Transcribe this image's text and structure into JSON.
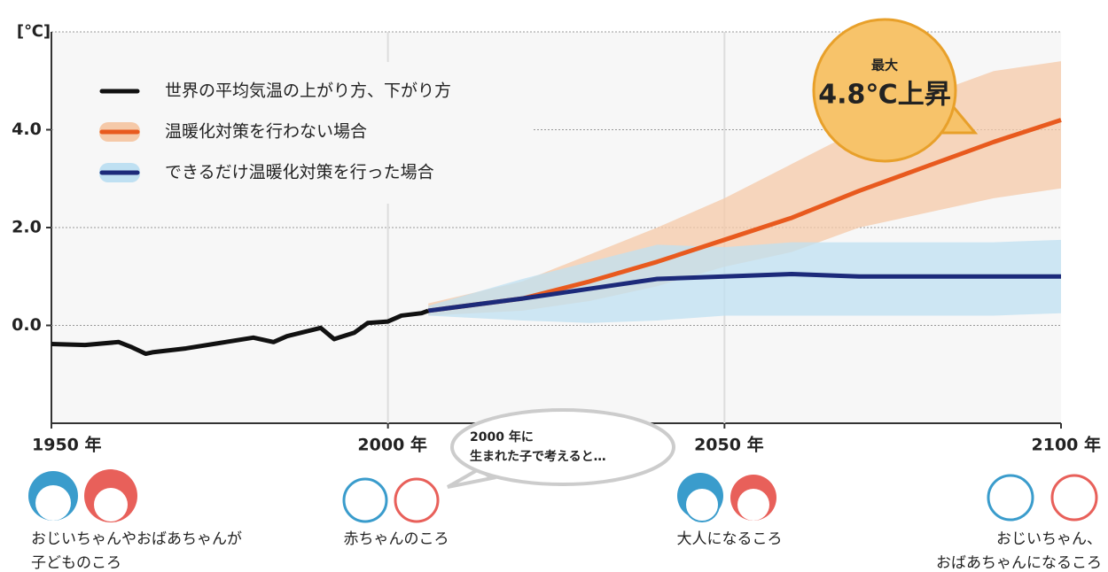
{
  "chart_data": {
    "type": "line",
    "y_unit": "[℃]",
    "xlim": [
      1950,
      2100
    ],
    "ylim": [
      -2,
      6
    ],
    "xticks": [
      {
        "value": 1950,
        "label": "1950 年"
      },
      {
        "value": 2000,
        "label": "2000 年"
      },
      {
        "value": 2050,
        "label": "2050 年"
      },
      {
        "value": 2100,
        "label": "2100 年"
      }
    ],
    "yticks": [
      {
        "value": 0,
        "label": "0.0"
      },
      {
        "value": 2,
        "label": "2.0"
      },
      {
        "value": 4,
        "label": "4.0"
      }
    ],
    "grid": true,
    "series": [
      {
        "name": "世界の平均気温の上がり方、下がり方",
        "color": "#111111",
        "x": [
          1950,
          1955,
          1960,
          1962,
          1964,
          1965,
          1970,
          1975,
          1980,
          1983,
          1985,
          1990,
          1992,
          1995,
          1997,
          2000,
          2002,
          2005,
          2006
        ],
        "values": [
          -0.38,
          -0.4,
          -0.34,
          -0.45,
          -0.58,
          -0.55,
          -0.47,
          -0.36,
          -0.25,
          -0.34,
          -0.22,
          -0.05,
          -0.28,
          -0.15,
          0.05,
          0.08,
          0.2,
          0.25,
          0.3
        ]
      },
      {
        "name": "温暖化対策を行わない場合",
        "color": "#e85a1e",
        "x": [
          2006,
          2020,
          2030,
          2040,
          2050,
          2060,
          2070,
          2080,
          2090,
          2100
        ],
        "values": [
          0.3,
          0.55,
          0.9,
          1.3,
          1.75,
          2.2,
          2.75,
          3.25,
          3.75,
          4.2
        ],
        "band_color": "#f5c9a8",
        "band_low": [
          0.2,
          0.3,
          0.5,
          0.8,
          1.2,
          1.5,
          2.0,
          2.3,
          2.6,
          2.8
        ],
        "band_high": [
          0.45,
          0.9,
          1.45,
          2.0,
          2.6,
          3.3,
          4.0,
          4.7,
          5.2,
          5.4
        ]
      },
      {
        "name": "できるだけ温暖化対策を行った場合",
        "color": "#1c2a7a",
        "x": [
          2006,
          2020,
          2030,
          2040,
          2050,
          2060,
          2070,
          2080,
          2090,
          2100
        ],
        "values": [
          0.3,
          0.55,
          0.75,
          0.95,
          1.0,
          1.05,
          1.0,
          1.0,
          1.0,
          1.0
        ],
        "band_color": "#bfe0f2",
        "band_low": [
          0.2,
          0.1,
          0.05,
          0.1,
          0.2,
          0.2,
          0.2,
          0.2,
          0.2,
          0.25
        ],
        "band_high": [
          0.4,
          0.95,
          1.3,
          1.65,
          1.6,
          1.7,
          1.7,
          1.7,
          1.7,
          1.75
        ]
      }
    ],
    "callout": {
      "small": "最大",
      "big": "4.8℃上昇"
    },
    "bubble": [
      "2000 年に",
      "生まれた子で考えると…"
    ],
    "generations": [
      {
        "lines": [
          "おじいちゃんやおばあちゃんが",
          "子どものころ"
        ]
      },
      {
        "lines": [
          "赤ちゃんのころ"
        ]
      },
      {
        "lines": [
          "大人になるころ"
        ]
      },
      {
        "lines": [
          "おじいちゃん、",
          "おばあちゃんになるころ"
        ]
      }
    ]
  }
}
